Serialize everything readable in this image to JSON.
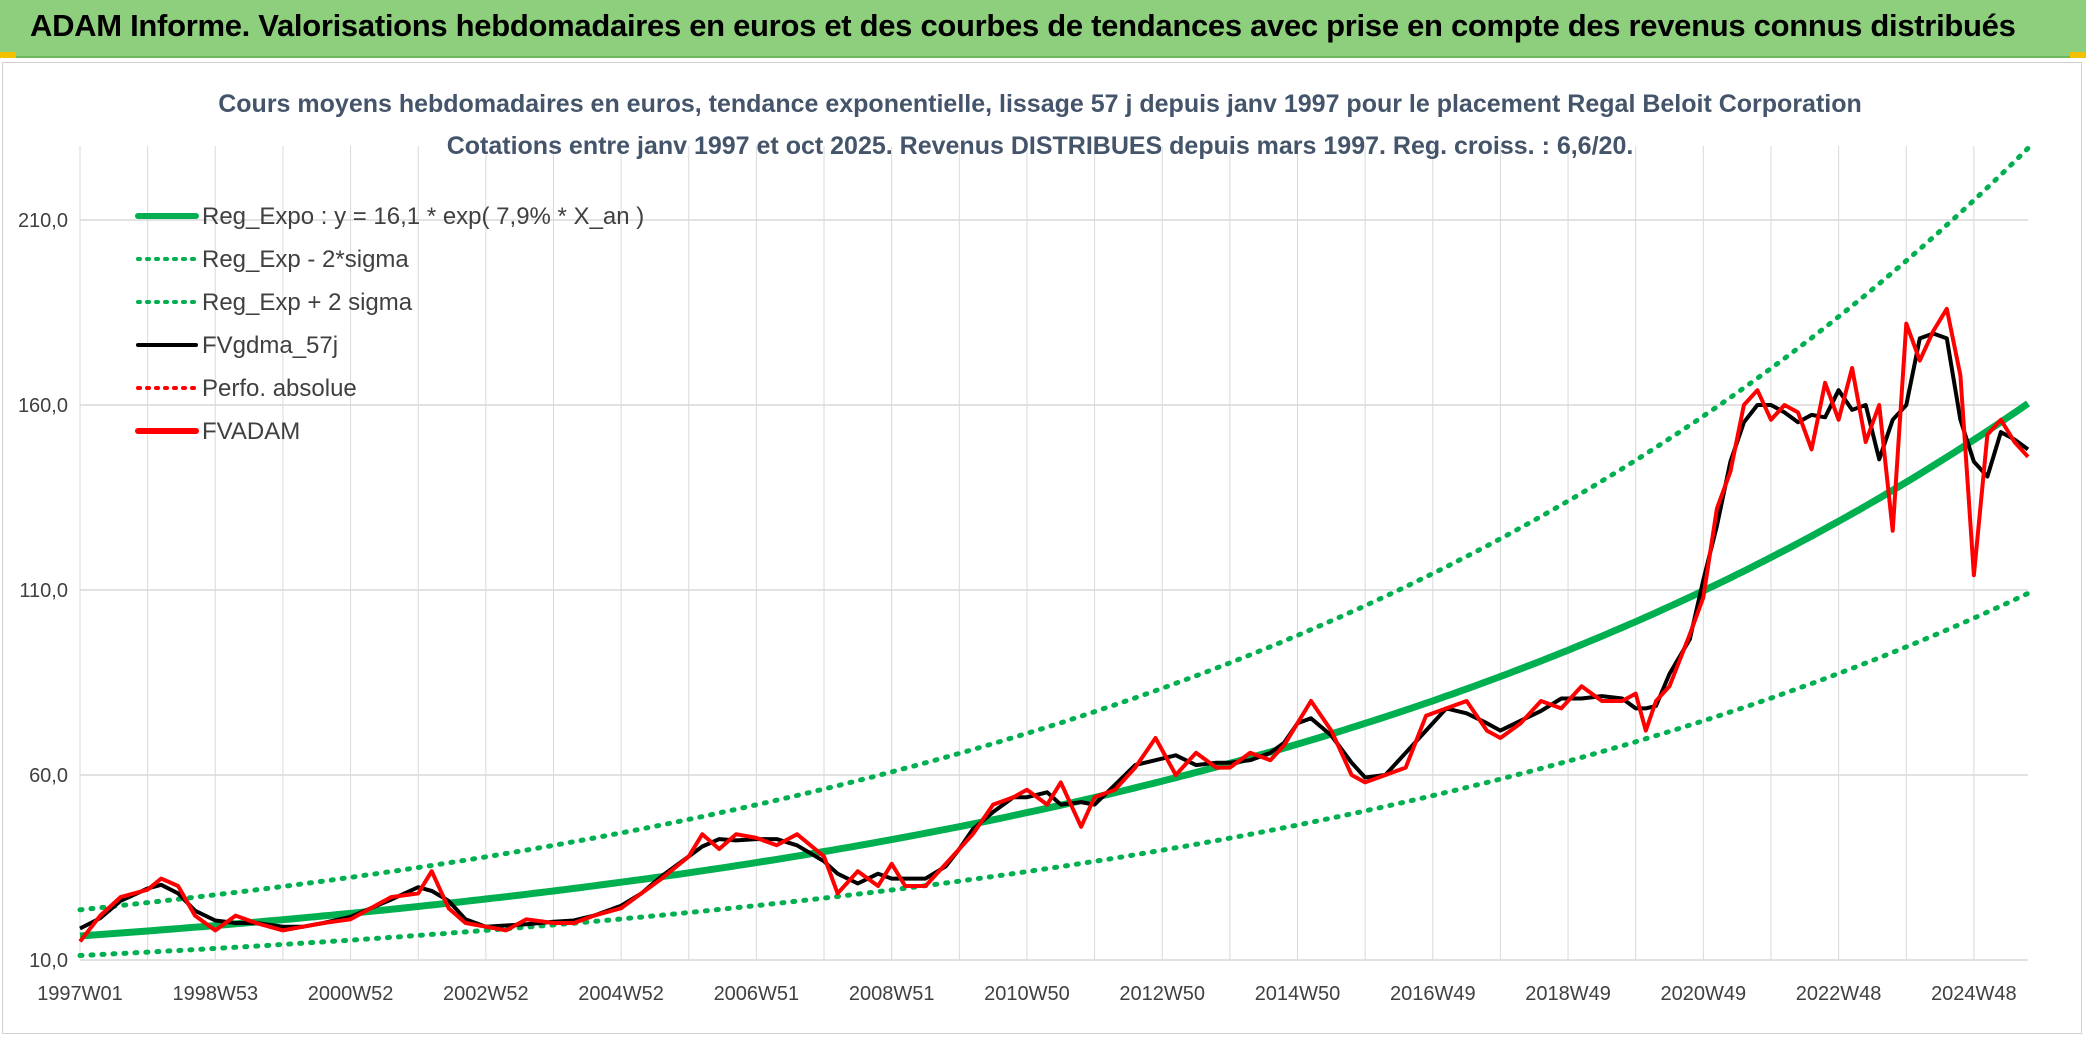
{
  "page": {
    "banner_title": "ADAM Informe. Valorisations hebdomadaires en euros et des courbes de tendances avec prise en compte des revenus connus distribués"
  },
  "colors": {
    "banner_bg": "#8ecf7d",
    "regression": "#00b050",
    "smoothed": "#000000",
    "price": "#ff0000",
    "title": "#44546a",
    "grid": "#d9d9d9"
  },
  "chart_data": {
    "type": "line",
    "title": "Cours moyens hebdomadaires en euros, tendance exponentielle, lissage 57 j depuis janv 1997 pour le placement Regal Beloit Corporation",
    "subtitle": "Cotations entre janv 1997 et oct 2025. Revenus DISTRIBUES depuis mars 1997. Reg. croiss. : 6,6/20.",
    "xlabel": "",
    "ylabel": "",
    "x_range": [
      1997.0,
      2025.8
    ],
    "ylim": [
      10,
      230
    ],
    "y_ticks": [
      "10,0",
      "60,0",
      "110,0",
      "160,0",
      "210,0"
    ],
    "y_tick_values": [
      10,
      60,
      110,
      160,
      210
    ],
    "x_ticks": [
      "1997W01",
      "1998W53",
      "2000W52",
      "2002W52",
      "2004W52",
      "2006W51",
      "2008W51",
      "2010W50",
      "2012W50",
      "2014W50",
      "2016W49",
      "2018W49",
      "2020W49",
      "2022W48",
      "2024W48"
    ],
    "x_tick_values": [
      1997.0,
      1999.0,
      2001.0,
      2003.0,
      2005.0,
      2007.0,
      2009.0,
      2011.0,
      2013.0,
      2015.0,
      2017.0,
      2019.0,
      2021.0,
      2023.0,
      2025.0
    ],
    "grid": true,
    "legend_position": "top-left",
    "regression": {
      "equation_label": "Reg_Expo : y = 16,1 * exp( 7,9% *  X_an )",
      "a": 16.1,
      "b": 0.079,
      "lower_factor": 0.68,
      "upper_factor": 1.43
    },
    "series": [
      {
        "name": "Reg_Expo : y = 16,1 * exp( 7,9% *  X_an )",
        "style": "solid-thick",
        "color": "#00b050"
      },
      {
        "name": "Reg_Exp - 2*sigma",
        "style": "dotted",
        "color": "#00b050"
      },
      {
        "name": "Reg_Exp + 2 sigma",
        "style": "dotted",
        "color": "#00b050"
      },
      {
        "name": "FVgdma_57j",
        "style": "solid",
        "color": "#000000"
      },
      {
        "name": "Perfo. absolue",
        "style": "dotted",
        "color": "#ff0000"
      },
      {
        "name": "FVADAM",
        "style": "solid-thick",
        "color": "#ff0000",
        "x": [
          1997.0,
          1997.3,
          1997.6,
          1998.0,
          1998.2,
          1998.45,
          1998.7,
          1999.0,
          1999.3,
          1999.6,
          2000.0,
          2000.3,
          2000.6,
          2001.0,
          2001.3,
          2001.6,
          2002.0,
          2002.2,
          2002.45,
          2002.7,
          2003.0,
          2003.3,
          2003.6,
          2004.0,
          2004.3,
          2004.6,
          2005.0,
          2005.3,
          2005.6,
          2006.0,
          2006.2,
          2006.45,
          2006.7,
          2007.0,
          2007.3,
          2007.6,
          2008.0,
          2008.2,
          2008.5,
          2008.8,
          2009.0,
          2009.2,
          2009.5,
          2009.8,
          2010.0,
          2010.2,
          2010.5,
          2010.8,
          2011.0,
          2011.3,
          2011.5,
          2011.8,
          2012.0,
          2012.3,
          2012.6,
          2012.9,
          2013.2,
          2013.5,
          2013.8,
          2014.0,
          2014.3,
          2014.6,
          2014.8,
          2015.0,
          2015.2,
          2015.5,
          2015.8,
          2016.0,
          2016.3,
          2016.6,
          2016.9,
          2017.2,
          2017.5,
          2017.8,
          2018.0,
          2018.3,
          2018.6,
          2018.9,
          2019.2,
          2019.5,
          2019.8,
          2020.0,
          2020.15,
          2020.3,
          2020.5,
          2020.8,
          2021.0,
          2021.2,
          2021.4,
          2021.6,
          2021.8,
          2022.0,
          2022.2,
          2022.4,
          2022.6,
          2022.8,
          2023.0,
          2023.2,
          2023.4,
          2023.6,
          2023.8,
          2024.0,
          2024.2,
          2024.4,
          2024.6,
          2024.8,
          2025.0,
          2025.2,
          2025.4,
          2025.6,
          2025.8
        ],
        "values": [
          15,
          22,
          27,
          29,
          32,
          30,
          22,
          18,
          22,
          20,
          18,
          19,
          20,
          21,
          24,
          27,
          28,
          34,
          24,
          20,
          19,
          18,
          21,
          20,
          20,
          22,
          24,
          28,
          32,
          38,
          44,
          40,
          44,
          43,
          41,
          44,
          38,
          28,
          34,
          30,
          36,
          30,
          30,
          36,
          40,
          44,
          52,
          54,
          56,
          52,
          58,
          46,
          54,
          56,
          62,
          70,
          60,
          66,
          62,
          62,
          66,
          64,
          68,
          74,
          80,
          72,
          60,
          58,
          60,
          62,
          76,
          78,
          80,
          72,
          70,
          74,
          80,
          78,
          84,
          80,
          80,
          82,
          72,
          80,
          84,
          98,
          108,
          132,
          142,
          160,
          164,
          156,
          160,
          158,
          148,
          166,
          156,
          170,
          150,
          160,
          126,
          182,
          172,
          180,
          186,
          168,
          114,
          152,
          156,
          150,
          146
        ]
      }
    ]
  }
}
